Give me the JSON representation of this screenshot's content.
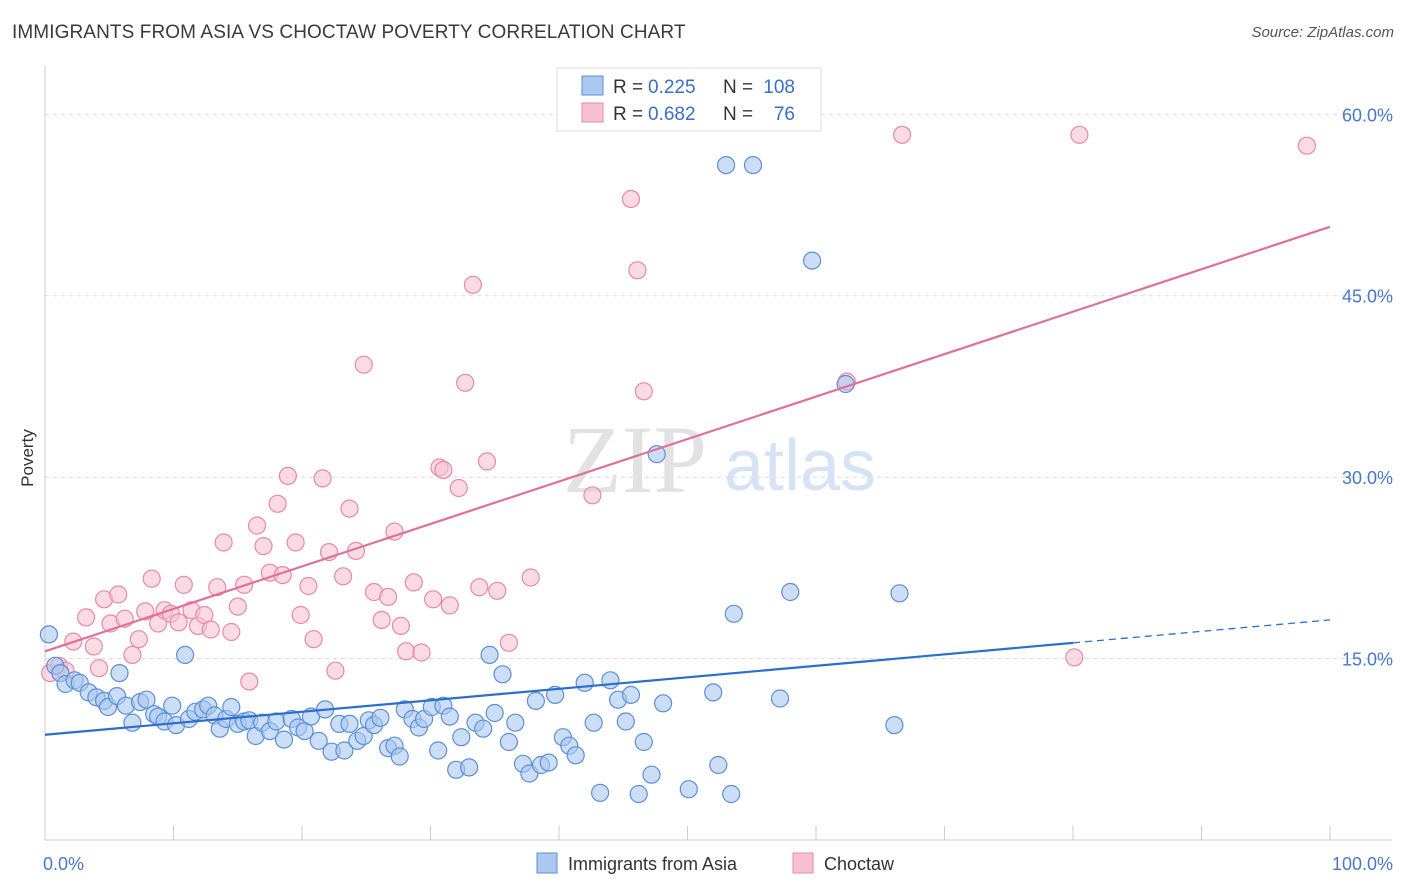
{
  "title": "IMMIGRANTS FROM ASIA VS CHOCTAW POVERTY CORRELATION CHART",
  "source": "Source: ZipAtlas.com",
  "watermark": {
    "zip": "ZIP",
    "atlas": "atlas"
  },
  "colors": {
    "blue_fill": "#aac8f0",
    "blue_stroke": "#5b8fd8",
    "blue_line": "#2a6fd0",
    "pink_fill": "#f6c1d1",
    "pink_stroke": "#e889a8",
    "pink_line": "#e07099",
    "tick_text": "#4a78c8",
    "grid": "#d8d8d8"
  },
  "legend_top": {
    "r_label": "R =",
    "n_label": "N =",
    "entries": [
      {
        "r": "0.225",
        "n": "108",
        "color": "blue"
      },
      {
        "r": "0.682",
        "n": "76",
        "color": "pink"
      }
    ]
  },
  "chart_data": {
    "type": "scatter",
    "title": "IMMIGRANTS FROM ASIA VS CHOCTAW POVERTY CORRELATION CHART",
    "xlabel": "",
    "ylabel": "Poverty",
    "xlim": [
      0,
      100
    ],
    "ylim": [
      0,
      63
    ],
    "x_tick_labels": [
      "0.0%",
      "100.0%"
    ],
    "y_ticks": [
      15,
      30,
      45,
      60
    ],
    "y_tick_labels": [
      "15.0%",
      "30.0%",
      "45.0%",
      "60.0%"
    ],
    "grid": true,
    "legend_position": "bottom",
    "series": [
      {
        "name": "Immigrants from Asia",
        "color": "blue",
        "trendline": {
          "x": [
            0,
            80
          ],
          "y": [
            8.7,
            16.3
          ],
          "dashed_to": [
            100,
            18.2
          ]
        },
        "points": [
          [
            0.3,
            17.0
          ],
          [
            0.8,
            14.4
          ],
          [
            1.2,
            13.8
          ],
          [
            1.6,
            12.9
          ],
          [
            2.3,
            13.2
          ],
          [
            2.7,
            13.0
          ],
          [
            3.4,
            12.2
          ],
          [
            4.0,
            11.8
          ],
          [
            4.6,
            11.5
          ],
          [
            4.9,
            11.0
          ],
          [
            5.6,
            11.9
          ],
          [
            5.8,
            13.8
          ],
          [
            6.3,
            11.1
          ],
          [
            6.8,
            9.7
          ],
          [
            7.4,
            11.4
          ],
          [
            7.9,
            11.6
          ],
          [
            8.5,
            10.4
          ],
          [
            8.8,
            10.2
          ],
          [
            9.3,
            9.8
          ],
          [
            9.9,
            11.1
          ],
          [
            10.2,
            9.5
          ],
          [
            10.9,
            15.3
          ],
          [
            11.2,
            10.0
          ],
          [
            11.7,
            10.6
          ],
          [
            12.3,
            10.8
          ],
          [
            12.7,
            11.1
          ],
          [
            13.2,
            10.3
          ],
          [
            13.6,
            9.2
          ],
          [
            14.1,
            10.0
          ],
          [
            14.5,
            11.0
          ],
          [
            15.0,
            9.6
          ],
          [
            15.5,
            9.8
          ],
          [
            15.9,
            9.9
          ],
          [
            16.4,
            8.6
          ],
          [
            16.9,
            9.7
          ],
          [
            17.5,
            9.0
          ],
          [
            18.0,
            9.8
          ],
          [
            18.6,
            8.3
          ],
          [
            19.2,
            10.0
          ],
          [
            19.7,
            9.3
          ],
          [
            20.2,
            9.0
          ],
          [
            20.7,
            10.2
          ],
          [
            21.3,
            8.2
          ],
          [
            21.8,
            10.8
          ],
          [
            22.3,
            7.3
          ],
          [
            22.9,
            9.6
          ],
          [
            23.3,
            7.4
          ],
          [
            23.7,
            9.6
          ],
          [
            24.3,
            8.2
          ],
          [
            24.8,
            8.6
          ],
          [
            25.2,
            9.9
          ],
          [
            25.6,
            9.5
          ],
          [
            26.1,
            10.1
          ],
          [
            26.7,
            7.6
          ],
          [
            27.2,
            7.8
          ],
          [
            27.6,
            6.9
          ],
          [
            28.0,
            10.8
          ],
          [
            28.6,
            10.0
          ],
          [
            29.1,
            9.3
          ],
          [
            29.5,
            10.0
          ],
          [
            30.1,
            11.0
          ],
          [
            30.6,
            7.4
          ],
          [
            31.0,
            11.1
          ],
          [
            31.5,
            10.2
          ],
          [
            32.0,
            5.8
          ],
          [
            32.4,
            8.5
          ],
          [
            33.0,
            6.0
          ],
          [
            33.5,
            9.7
          ],
          [
            34.1,
            9.2
          ],
          [
            34.6,
            15.3
          ],
          [
            35.0,
            10.5
          ],
          [
            35.6,
            13.7
          ],
          [
            36.1,
            8.1
          ],
          [
            36.6,
            9.7
          ],
          [
            37.2,
            6.3
          ],
          [
            37.7,
            5.5
          ],
          [
            38.2,
            11.5
          ],
          [
            38.6,
            6.2
          ],
          [
            39.2,
            6.4
          ],
          [
            39.7,
            12.0
          ],
          [
            40.3,
            8.5
          ],
          [
            40.8,
            7.8
          ],
          [
            41.3,
            7.0
          ],
          [
            42.0,
            13.0
          ],
          [
            42.7,
            9.7
          ],
          [
            43.2,
            3.9
          ],
          [
            44.0,
            13.2
          ],
          [
            44.6,
            11.6
          ],
          [
            45.2,
            9.8
          ],
          [
            45.6,
            12.0
          ],
          [
            46.2,
            3.8
          ],
          [
            46.6,
            8.1
          ],
          [
            47.2,
            5.4
          ],
          [
            47.6,
            31.9
          ],
          [
            48.1,
            11.3
          ],
          [
            50.1,
            4.2
          ],
          [
            52.0,
            12.2
          ],
          [
            52.4,
            6.2
          ],
          [
            53.4,
            3.8
          ],
          [
            53.6,
            18.7
          ],
          [
            55.1,
            55.8
          ],
          [
            57.2,
            11.7
          ],
          [
            58.0,
            20.5
          ],
          [
            59.7,
            47.9
          ],
          [
            62.3,
            37.7
          ],
          [
            66.5,
            20.4
          ],
          [
            66.1,
            9.5
          ],
          [
            53.0,
            55.8
          ]
        ]
      },
      {
        "name": "Choctaw",
        "color": "pink",
        "trendline": {
          "x": [
            0,
            100
          ],
          "y": [
            15.6,
            50.7
          ]
        },
        "points": [
          [
            0.4,
            13.8
          ],
          [
            1.1,
            14.4
          ],
          [
            1.6,
            14.0
          ],
          [
            2.2,
            16.4
          ],
          [
            3.2,
            18.4
          ],
          [
            3.8,
            16.0
          ],
          [
            4.2,
            14.2
          ],
          [
            4.6,
            19.9
          ],
          [
            5.1,
            17.9
          ],
          [
            5.7,
            20.3
          ],
          [
            6.2,
            18.3
          ],
          [
            6.8,
            15.3
          ],
          [
            7.3,
            16.6
          ],
          [
            7.8,
            18.9
          ],
          [
            8.3,
            21.6
          ],
          [
            8.8,
            17.9
          ],
          [
            9.3,
            19.0
          ],
          [
            9.8,
            18.7
          ],
          [
            10.4,
            18.0
          ],
          [
            10.8,
            21.1
          ],
          [
            11.4,
            19.0
          ],
          [
            11.9,
            17.7
          ],
          [
            12.4,
            18.6
          ],
          [
            12.9,
            17.4
          ],
          [
            13.4,
            20.9
          ],
          [
            13.9,
            24.6
          ],
          [
            14.5,
            17.2
          ],
          [
            15.0,
            19.3
          ],
          [
            15.5,
            21.1
          ],
          [
            15.9,
            13.1
          ],
          [
            16.5,
            26.0
          ],
          [
            17.0,
            24.3
          ],
          [
            17.5,
            22.1
          ],
          [
            18.1,
            27.8
          ],
          [
            18.5,
            21.9
          ],
          [
            18.9,
            30.1
          ],
          [
            19.5,
            24.6
          ],
          [
            19.9,
            18.6
          ],
          [
            20.5,
            21.0
          ],
          [
            20.9,
            16.6
          ],
          [
            21.6,
            29.9
          ],
          [
            22.1,
            23.8
          ],
          [
            22.6,
            14.0
          ],
          [
            23.2,
            21.8
          ],
          [
            23.7,
            27.4
          ],
          [
            24.2,
            23.9
          ],
          [
            24.8,
            39.3
          ],
          [
            25.6,
            20.5
          ],
          [
            26.2,
            18.2
          ],
          [
            26.7,
            20.1
          ],
          [
            27.2,
            25.5
          ],
          [
            27.7,
            17.7
          ],
          [
            28.1,
            15.6
          ],
          [
            28.7,
            21.3
          ],
          [
            29.3,
            15.5
          ],
          [
            30.2,
            19.9
          ],
          [
            30.7,
            30.8
          ],
          [
            31.0,
            30.6
          ],
          [
            31.5,
            19.4
          ],
          [
            32.2,
            29.1
          ],
          [
            32.7,
            37.8
          ],
          [
            33.3,
            45.9
          ],
          [
            33.8,
            20.9
          ],
          [
            34.4,
            31.3
          ],
          [
            35.2,
            20.6
          ],
          [
            36.1,
            16.3
          ],
          [
            37.8,
            21.7
          ],
          [
            42.6,
            28.5
          ],
          [
            45.6,
            53.0
          ],
          [
            46.1,
            47.1
          ],
          [
            46.6,
            37.1
          ],
          [
            62.4,
            37.9
          ],
          [
            66.7,
            58.3
          ],
          [
            80.1,
            15.1
          ],
          [
            80.5,
            58.3
          ],
          [
            98.2,
            57.4
          ]
        ]
      }
    ]
  },
  "bottom_legend": [
    {
      "label": "Immigrants from Asia",
      "color": "blue"
    },
    {
      "label": "Choctaw",
      "color": "pink"
    }
  ]
}
